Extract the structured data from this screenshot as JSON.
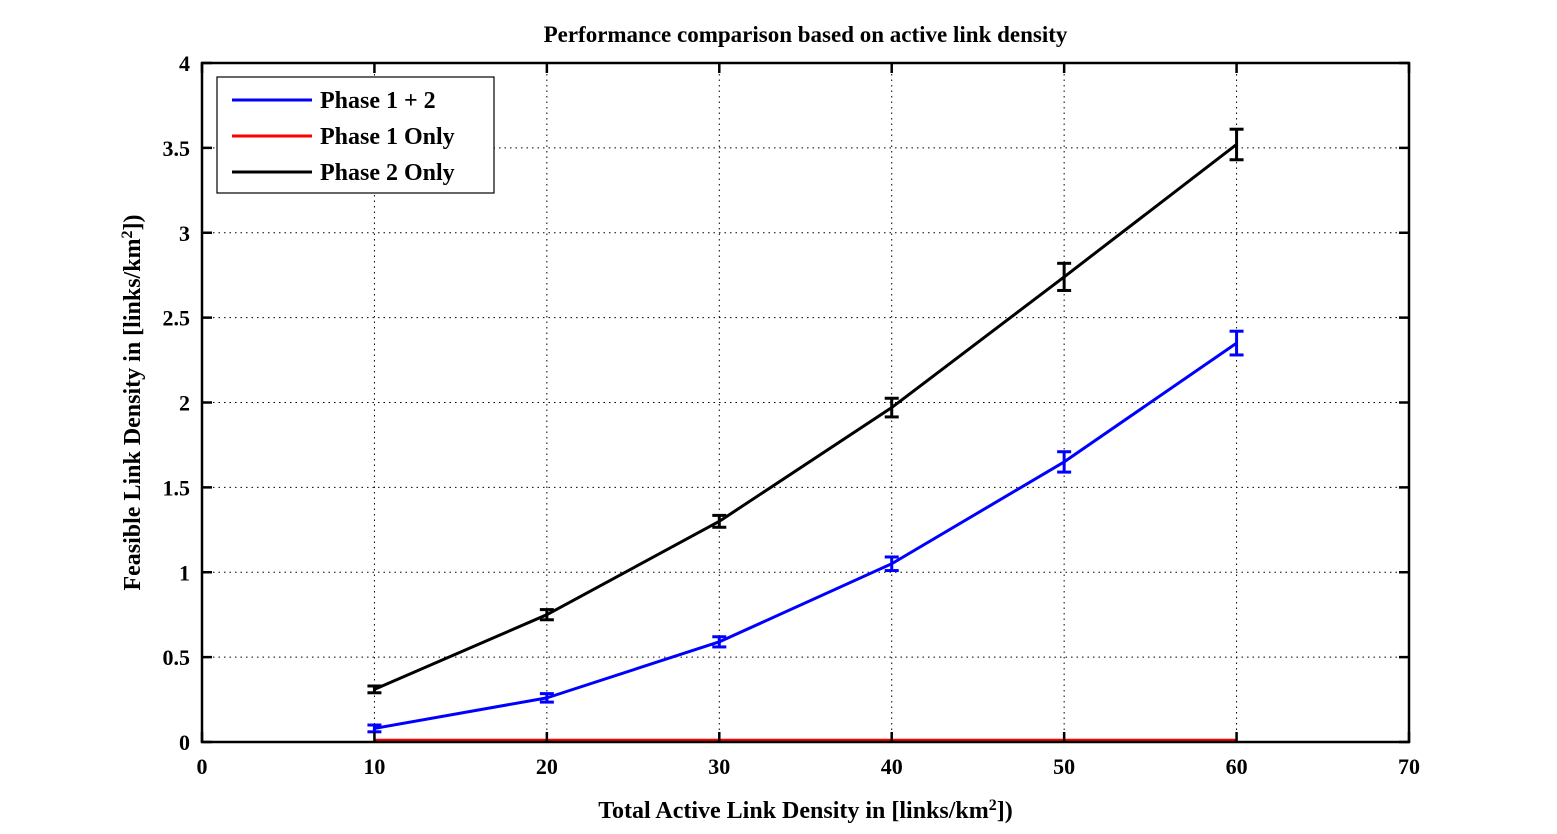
{
  "chart_data": {
    "type": "line",
    "title": "Performance comparison based on active link density",
    "xlabel": {
      "text": "Total Active Link Density in [links/km",
      "sup": "2",
      "suffix": "])"
    },
    "ylabel": {
      "text": "Feasible Link Density in [links/km",
      "sup": "2",
      "suffix": "])"
    },
    "xlim": [
      0,
      70
    ],
    "ylim": [
      0,
      4
    ],
    "xticks": [
      0,
      10,
      20,
      30,
      40,
      50,
      60,
      70
    ],
    "xtick_labels": [
      "0",
      "10",
      "20",
      "30",
      "40",
      "50",
      "60",
      "70"
    ],
    "yticks": [
      0,
      0.5,
      1,
      1.5,
      2,
      2.5,
      3,
      3.5,
      4
    ],
    "ytick_labels": [
      "0",
      "0.5",
      "1",
      "1.5",
      "2",
      "2.5",
      "3",
      "3.5",
      "4"
    ],
    "grid": true,
    "legend_position": "top-left",
    "x": [
      10,
      20,
      30,
      40,
      50,
      60
    ],
    "series": [
      {
        "name": "Phase 1 + 2",
        "color": "#0000ff",
        "values": [
          0.08,
          0.26,
          0.59,
          1.05,
          1.65,
          2.35
        ],
        "errors": [
          0.02,
          0.025,
          0.03,
          0.04,
          0.06,
          0.07
        ]
      },
      {
        "name": "Phase 1 Only",
        "color": "#ff0000",
        "values": [
          0.01,
          0.01,
          0.01,
          0.01,
          0.01,
          0.01
        ],
        "errors": [
          0,
          0,
          0,
          0,
          0,
          0
        ]
      },
      {
        "name": "Phase 2 Only",
        "color": "#000000",
        "values": [
          0.31,
          0.75,
          1.3,
          1.97,
          2.74,
          3.52
        ],
        "errors": [
          0.02,
          0.03,
          0.035,
          0.055,
          0.08,
          0.09
        ]
      }
    ]
  }
}
